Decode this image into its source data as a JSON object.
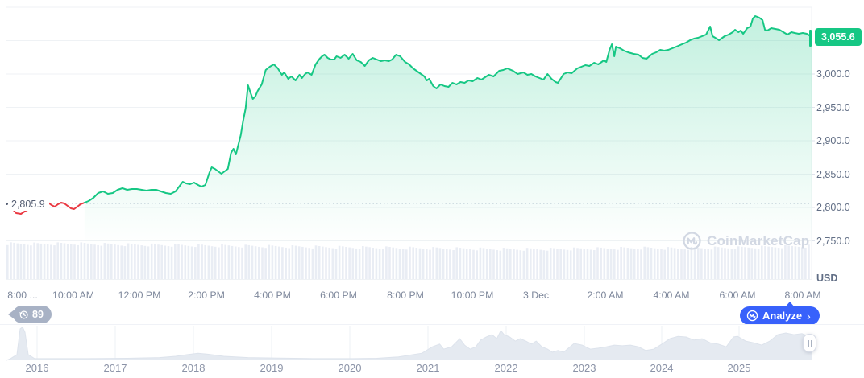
{
  "chart": {
    "current_price_label": "3,055.6",
    "open_price_label": "2,805.9",
    "unit": "USD",
    "y_axis_labels": [
      "3,000.0",
      "2,950.0",
      "2,900.0",
      "2,850.0",
      "2,800.0",
      "2,750.0"
    ],
    "x_axis_labels": [
      "8:00 ...",
      "10:00 AM",
      "12:00 PM",
      "2:00 PM",
      "4:00 PM",
      "6:00 PM",
      "8:00 PM",
      "10:00 PM",
      "3 Dec",
      "2:00 AM",
      "4:00 AM",
      "6:00 AM",
      "8:00 AM"
    ]
  },
  "watermark": {
    "label": "CoinMarketCap"
  },
  "watchers": {
    "count": "89"
  },
  "analyze": {
    "label": "Analyze",
    "chevron": "›"
  },
  "navigator": {
    "year_labels": [
      "2016",
      "2017",
      "2018",
      "2019",
      "2020",
      "2021",
      "2022",
      "2023",
      "2024",
      "2025"
    ]
  },
  "colors": {
    "up": "#16c784",
    "down": "#ea3943",
    "accent": "#3861fb",
    "grid": "#eff2f5",
    "tick": "#dfe3ec",
    "dotted_ref": "#c3cad7",
    "volume": "#e9edf4",
    "nav_fill": "#e5eaf1",
    "nav_stroke": "#dde3ec",
    "nav_grid": "#eef1f6"
  },
  "chart_data": {
    "type": "line",
    "title": "",
    "ylabel": "USD",
    "open": 2805.9,
    "last": 3055.6,
    "y_ticks": [
      3000,
      2950,
      2900,
      2850,
      2800,
      2750
    ],
    "x_tick_labels": [
      "8:00 ...",
      "10:00 AM",
      "12:00 PM",
      "2:00 PM",
      "4:00 PM",
      "6:00 PM",
      "8:00 PM",
      "10:00 PM",
      "3 Dec",
      "2:00 AM",
      "4:00 AM",
      "6:00 AM",
      "8:00 AM"
    ],
    "legend": "none",
    "grid": "horizontal",
    "red_until_t": 0.097,
    "series": [
      [
        0.0,
        2804.8
      ],
      [
        0.006,
        2800.0
      ],
      [
        0.012,
        2791.6
      ],
      [
        0.018,
        2790.4
      ],
      [
        0.024,
        2795.2
      ],
      [
        0.032,
        2798.8
      ],
      [
        0.04,
        2802.4
      ],
      [
        0.048,
        2804.8
      ],
      [
        0.052,
        2807.2
      ],
      [
        0.056,
        2803.6
      ],
      [
        0.06,
        2801.2
      ],
      [
        0.064,
        2804.8
      ],
      [
        0.068,
        2807.2
      ],
      [
        0.072,
        2806.0
      ],
      [
        0.076,
        2802.4
      ],
      [
        0.08,
        2798.8
      ],
      [
        0.084,
        2797.6
      ],
      [
        0.088,
        2801.2
      ],
      [
        0.092,
        2804.8
      ],
      [
        0.097,
        2807.2
      ],
      [
        0.102,
        2809.6
      ],
      [
        0.108,
        2814.5
      ],
      [
        0.114,
        2821.7
      ],
      [
        0.12,
        2824.1
      ],
      [
        0.126,
        2820.5
      ],
      [
        0.132,
        2821.7
      ],
      [
        0.138,
        2826.5
      ],
      [
        0.144,
        2828.9
      ],
      [
        0.15,
        2826.5
      ],
      [
        0.156,
        2827.7
      ],
      [
        0.162,
        2827.7
      ],
      [
        0.168,
        2826.5
      ],
      [
        0.174,
        2825.3
      ],
      [
        0.18,
        2826.5
      ],
      [
        0.186,
        2826.5
      ],
      [
        0.192,
        2824.1
      ],
      [
        0.198,
        2821.7
      ],
      [
        0.204,
        2820.5
      ],
      [
        0.21,
        2824.1
      ],
      [
        0.216,
        2833.7
      ],
      [
        0.219,
        2838.6
      ],
      [
        0.223,
        2836.1
      ],
      [
        0.228,
        2834.9
      ],
      [
        0.233,
        2837.3
      ],
      [
        0.238,
        2833.7
      ],
      [
        0.242,
        2831.3
      ],
      [
        0.247,
        2833.7
      ],
      [
        0.252,
        2851.8
      ],
      [
        0.255,
        2860.2
      ],
      [
        0.259,
        2857.8
      ],
      [
        0.263,
        2854.2
      ],
      [
        0.267,
        2850.6
      ],
      [
        0.271,
        2854.2
      ],
      [
        0.275,
        2857.8
      ],
      [
        0.279,
        2881.9
      ],
      [
        0.282,
        2888.0
      ],
      [
        0.285,
        2879.5
      ],
      [
        0.288,
        2894.0
      ],
      [
        0.291,
        2908.4
      ],
      [
        0.294,
        2930.1
      ],
      [
        0.297,
        2948.2
      ],
      [
        0.3,
        2983.1
      ],
      [
        0.303,
        2972.3
      ],
      [
        0.306,
        2962.7
      ],
      [
        0.309,
        2966.3
      ],
      [
        0.312,
        2974.7
      ],
      [
        0.317,
        2984.3
      ],
      [
        0.322,
        3006.0
      ],
      [
        0.327,
        3010.8
      ],
      [
        0.332,
        3014.5
      ],
      [
        0.337,
        3008.4
      ],
      [
        0.342,
        2998.8
      ],
      [
        0.345,
        3002.4
      ],
      [
        0.35,
        2992.8
      ],
      [
        0.354,
        2996.4
      ],
      [
        0.359,
        2990.4
      ],
      [
        0.364,
        2998.8
      ],
      [
        0.367,
        2994.0
      ],
      [
        0.371,
        3000.0
      ],
      [
        0.374,
        3002.4
      ],
      [
        0.379,
        2998.8
      ],
      [
        0.384,
        3014.5
      ],
      [
        0.389,
        3022.9
      ],
      [
        0.392,
        3026.5
      ],
      [
        0.395,
        3028.9
      ],
      [
        0.399,
        3024.1
      ],
      [
        0.403,
        3021.7
      ],
      [
        0.407,
        3021.7
      ],
      [
        0.41,
        3026.5
      ],
      [
        0.415,
        3024.1
      ],
      [
        0.42,
        3028.9
      ],
      [
        0.425,
        3022.9
      ],
      [
        0.43,
        3030.1
      ],
      [
        0.435,
        3020.5
      ],
      [
        0.44,
        3018.1
      ],
      [
        0.445,
        3012.0
      ],
      [
        0.45,
        3020.5
      ],
      [
        0.455,
        3024.1
      ],
      [
        0.46,
        3021.7
      ],
      [
        0.465,
        3019.3
      ],
      [
        0.47,
        3020.5
      ],
      [
        0.475,
        3019.3
      ],
      [
        0.479,
        3021.7
      ],
      [
        0.484,
        3028.9
      ],
      [
        0.489,
        3026.5
      ],
      [
        0.495,
        3018.1
      ],
      [
        0.5,
        3014.5
      ],
      [
        0.505,
        3008.4
      ],
      [
        0.512,
        3002.4
      ],
      [
        0.519,
        2996.4
      ],
      [
        0.522,
        2990.4
      ],
      [
        0.525,
        2992.8
      ],
      [
        0.53,
        2981.9
      ],
      [
        0.534,
        2978.3
      ],
      [
        0.539,
        2984.3
      ],
      [
        0.544,
        2981.9
      ],
      [
        0.549,
        2980.7
      ],
      [
        0.554,
        2986.7
      ],
      [
        0.559,
        2984.3
      ],
      [
        0.564,
        2988.0
      ],
      [
        0.569,
        2986.7
      ],
      [
        0.574,
        2990.4
      ],
      [
        0.579,
        2989.2
      ],
      [
        0.585,
        2994.0
      ],
      [
        0.59,
        2991.6
      ],
      [
        0.599,
        2998.8
      ],
      [
        0.605,
        2996.4
      ],
      [
        0.612,
        3004.8
      ],
      [
        0.617,
        3006.0
      ],
      [
        0.622,
        3008.4
      ],
      [
        0.629,
        3004.8
      ],
      [
        0.635,
        3000.0
      ],
      [
        0.642,
        3002.4
      ],
      [
        0.647,
        2998.8
      ],
      [
        0.652,
        3000.0
      ],
      [
        0.657,
        2996.4
      ],
      [
        0.662,
        2994.0
      ],
      [
        0.667,
        2991.6
      ],
      [
        0.672,
        3000.0
      ],
      [
        0.677,
        2992.8
      ],
      [
        0.682,
        2988.0
      ],
      [
        0.685,
        2986.7
      ],
      [
        0.692,
        3000.0
      ],
      [
        0.697,
        3002.4
      ],
      [
        0.702,
        3001.2
      ],
      [
        0.709,
        3008.4
      ],
      [
        0.714,
        3010.8
      ],
      [
        0.719,
        3013.3
      ],
      [
        0.724,
        3012.0
      ],
      [
        0.73,
        3016.9
      ],
      [
        0.735,
        3014.5
      ],
      [
        0.742,
        3020.5
      ],
      [
        0.745,
        3018.1
      ],
      [
        0.749,
        3036.1
      ],
      [
        0.752,
        3044.6
      ],
      [
        0.755,
        3026.5
      ],
      [
        0.757,
        3041.0
      ],
      [
        0.762,
        3038.6
      ],
      [
        0.767,
        3034.9
      ],
      [
        0.772,
        3032.5
      ],
      [
        0.779,
        3030.1
      ],
      [
        0.785,
        3028.9
      ],
      [
        0.79,
        3024.1
      ],
      [
        0.795,
        3022.9
      ],
      [
        0.802,
        3030.1
      ],
      [
        0.807,
        3032.5
      ],
      [
        0.812,
        3036.1
      ],
      [
        0.817,
        3034.9
      ],
      [
        0.822,
        3036.1
      ],
      [
        0.827,
        3038.6
      ],
      [
        0.832,
        3041.0
      ],
      [
        0.839,
        3044.6
      ],
      [
        0.844,
        3047.0
      ],
      [
        0.849,
        3050.6
      ],
      [
        0.854,
        3053.0
      ],
      [
        0.859,
        3054.2
      ],
      [
        0.864,
        3056.6
      ],
      [
        0.869,
        3059.0
      ],
      [
        0.874,
        3071.1
      ],
      [
        0.877,
        3056.6
      ],
      [
        0.882,
        3053.0
      ],
      [
        0.885,
        3050.6
      ],
      [
        0.892,
        3056.6
      ],
      [
        0.897,
        3059.0
      ],
      [
        0.902,
        3062.7
      ],
      [
        0.905,
        3066.3
      ],
      [
        0.909,
        3062.7
      ],
      [
        0.912,
        3065.1
      ],
      [
        0.915,
        3060.2
      ],
      [
        0.92,
        3068.7
      ],
      [
        0.924,
        3071.1
      ],
      [
        0.927,
        3083.1
      ],
      [
        0.93,
        3086.7
      ],
      [
        0.935,
        3084.3
      ],
      [
        0.939,
        3080.7
      ],
      [
        0.942,
        3066.3
      ],
      [
        0.945,
        3065.1
      ],
      [
        0.95,
        3068.7
      ],
      [
        0.955,
        3067.5
      ],
      [
        0.96,
        3066.3
      ],
      [
        0.965,
        3062.7
      ],
      [
        0.97,
        3059.0
      ],
      [
        0.975,
        3062.7
      ],
      [
        0.979,
        3061.4
      ],
      [
        0.984,
        3060.2
      ],
      [
        0.989,
        3061.4
      ],
      [
        0.994,
        3060.2
      ],
      [
        1.0,
        3055.6
      ]
    ],
    "volume_profile": [
      44,
      43.5,
      44,
      43,
      42.5,
      42,
      41.5,
      41,
      40.5,
      40,
      39.5,
      39,
      38.5,
      38,
      37.5,
      37,
      37,
      37.5,
      38,
      38.5,
      38,
      38.5,
      39,
      40,
      41
    ],
    "nav_series": [
      [
        0,
        0.0
      ],
      [
        0.005,
        0.05
      ],
      [
        0.013,
        0.17
      ],
      [
        0.017,
        0.93
      ],
      [
        0.02,
        0.98
      ],
      [
        0.023,
        0.83
      ],
      [
        0.027,
        0.17
      ],
      [
        0.035,
        0.05
      ],
      [
        0.1,
        0.05
      ],
      [
        0.15,
        0.06
      ],
      [
        0.19,
        0.08
      ],
      [
        0.21,
        0.12
      ],
      [
        0.225,
        0.17
      ],
      [
        0.238,
        0.21
      ],
      [
        0.25,
        0.18
      ],
      [
        0.27,
        0.12
      ],
      [
        0.3,
        0.08
      ],
      [
        0.33,
        0.07
      ],
      [
        0.38,
        0.05
      ],
      [
        0.43,
        0.05
      ],
      [
        0.46,
        0.06
      ],
      [
        0.487,
        0.1
      ],
      [
        0.516,
        0.21
      ],
      [
        0.529,
        0.4
      ],
      [
        0.538,
        0.48
      ],
      [
        0.543,
        0.33
      ],
      [
        0.553,
        0.4
      ],
      [
        0.563,
        0.64
      ],
      [
        0.569,
        0.45
      ],
      [
        0.576,
        0.33
      ],
      [
        0.583,
        0.4
      ],
      [
        0.589,
        0.6
      ],
      [
        0.596,
        0.69
      ],
      [
        0.603,
        0.76
      ],
      [
        0.609,
        0.64
      ],
      [
        0.614,
        0.88
      ],
      [
        0.618,
        0.76
      ],
      [
        0.625,
        0.69
      ],
      [
        0.632,
        0.57
      ],
      [
        0.638,
        0.64
      ],
      [
        0.645,
        0.57
      ],
      [
        0.652,
        0.48
      ],
      [
        0.658,
        0.57
      ],
      [
        0.665,
        0.4
      ],
      [
        0.672,
        0.33
      ],
      [
        0.678,
        0.24
      ],
      [
        0.685,
        0.29
      ],
      [
        0.692,
        0.24
      ],
      [
        0.705,
        0.5
      ],
      [
        0.715,
        0.45
      ],
      [
        0.725,
        0.33
      ],
      [
        0.735,
        0.36
      ],
      [
        0.745,
        0.4
      ],
      [
        0.755,
        0.45
      ],
      [
        0.765,
        0.43
      ],
      [
        0.775,
        0.45
      ],
      [
        0.785,
        0.4
      ],
      [
        0.794,
        0.29
      ],
      [
        0.804,
        0.33
      ],
      [
        0.814,
        0.48
      ],
      [
        0.824,
        0.64
      ],
      [
        0.834,
        0.71
      ],
      [
        0.844,
        0.69
      ],
      [
        0.854,
        0.6
      ],
      [
        0.864,
        0.64
      ],
      [
        0.874,
        0.52
      ],
      [
        0.884,
        0.48
      ],
      [
        0.894,
        0.4
      ],
      [
        0.903,
        0.69
      ],
      [
        0.908,
        0.71
      ],
      [
        0.918,
        0.57
      ],
      [
        0.928,
        0.52
      ],
      [
        0.938,
        0.45
      ],
      [
        0.948,
        0.57
      ],
      [
        0.958,
        0.76
      ],
      [
        0.968,
        0.81
      ],
      [
        0.978,
        0.76
      ],
      [
        0.988,
        0.79
      ],
      [
        0.998,
        0.69
      ],
      [
        1,
        0.62
      ]
    ]
  }
}
